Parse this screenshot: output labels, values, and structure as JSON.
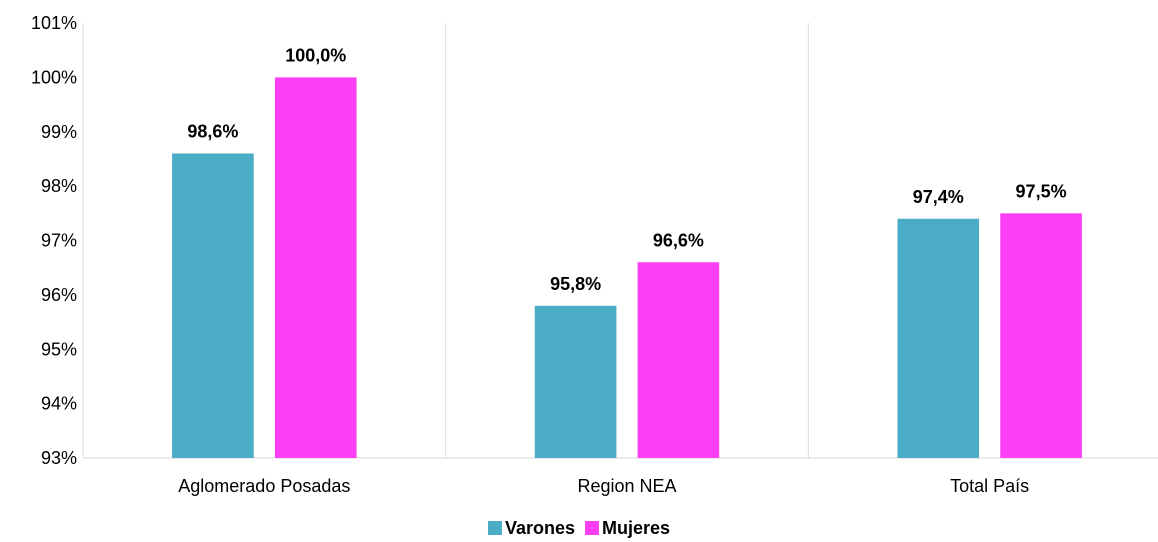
{
  "chart_data": {
    "type": "bar",
    "categories": [
      "Aglomerado Posadas",
      "Region NEA",
      "Total País"
    ],
    "series": [
      {
        "name": "Varones",
        "values": [
          98.6,
          95.8,
          97.4
        ],
        "labels": [
          "98,6%",
          "95,8%",
          "97,4%"
        ],
        "color": "#4BACC6"
      },
      {
        "name": "Mujeres",
        "values": [
          100.0,
          96.6,
          97.5
        ],
        "labels": [
          "100,0%",
          "96,6%",
          "97,5%"
        ],
        "color": "#FF3FF5"
      }
    ],
    "yticks": [
      {
        "value": 93,
        "label": "93%"
      },
      {
        "value": 94,
        "label": "94%"
      },
      {
        "value": 95,
        "label": "95%"
      },
      {
        "value": 96,
        "label": "96%"
      },
      {
        "value": 97,
        "label": "97%"
      },
      {
        "value": 98,
        "label": "98%"
      },
      {
        "value": 99,
        "label": "99%"
      },
      {
        "value": 100,
        "label": "100%"
      },
      {
        "value": 101,
        "label": "101%"
      }
    ],
    "ylim": [
      93,
      101
    ],
    "grid": false,
    "category_separators": true,
    "legend_position": "bottom",
    "title": "",
    "xlabel": "",
    "ylabel": ""
  }
}
